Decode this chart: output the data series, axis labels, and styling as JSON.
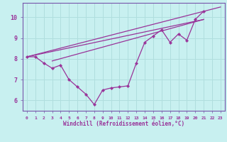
{
  "xlabel": "Windchill (Refroidissement éolien,°C)",
  "background_color": "#c8f0f0",
  "grid_color": "#b0dede",
  "line_color": "#993399",
  "spine_color": "#7755aa",
  "x_ticks": [
    0,
    1,
    2,
    3,
    4,
    5,
    6,
    7,
    8,
    9,
    10,
    11,
    12,
    13,
    14,
    15,
    16,
    17,
    18,
    19,
    20,
    21,
    22,
    23
  ],
  "y_ticks": [
    6,
    7,
    8,
    9,
    10
  ],
  "xlim": [
    -0.5,
    23.5
  ],
  "ylim": [
    5.5,
    10.7
  ],
  "series_main": {
    "x": [
      0,
      1,
      2,
      3,
      4,
      5,
      6,
      7,
      8,
      9,
      10,
      11,
      12,
      13,
      14,
      15,
      16,
      17,
      18,
      19,
      20,
      21
    ],
    "y": [
      8.1,
      8.1,
      7.8,
      7.55,
      7.7,
      7.0,
      6.65,
      6.3,
      5.8,
      6.5,
      6.6,
      6.65,
      6.7,
      7.8,
      8.8,
      9.1,
      9.4,
      8.8,
      9.2,
      8.9,
      9.9,
      10.3
    ]
  },
  "line_top": {
    "x": [
      0,
      23
    ],
    "y": [
      8.1,
      10.5
    ]
  },
  "line_mid1": {
    "x": [
      0,
      21
    ],
    "y": [
      8.1,
      9.9
    ]
  },
  "line_mid2": {
    "x": [
      3,
      21
    ],
    "y": [
      7.9,
      9.9
    ]
  }
}
